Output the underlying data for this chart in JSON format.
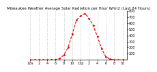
{
  "title": "Milwaukee Weather Average Solar Radiation per Hour W/m2 (Last 24 Hours)",
  "hours": [
    0,
    1,
    2,
    3,
    4,
    5,
    6,
    7,
    8,
    9,
    10,
    11,
    12,
    13,
    14,
    15,
    16,
    17,
    18,
    19,
    20,
    21,
    22,
    23
  ],
  "values": [
    0,
    0,
    0,
    0,
    0,
    0,
    5,
    20,
    80,
    200,
    420,
    650,
    720,
    760,
    680,
    560,
    380,
    180,
    50,
    10,
    0,
    0,
    0,
    0
  ],
  "line_color": "#dd0000",
  "linestyle": "--",
  "marker": ".",
  "markersize": 1.8,
  "linewidth": 0.8,
  "grid_color": "#aaaaaa",
  "grid_linestyle": ":",
  "grid_linewidth": 0.5,
  "background_color": "#ffffff",
  "ylim": [
    0,
    800
  ],
  "ytick_values": [
    100,
    200,
    300,
    400,
    500,
    600,
    700,
    800
  ],
  "ytick_fontsize": 3.5,
  "xtick_fontsize": 3.5,
  "title_fontsize": 4.0,
  "xlim": [
    0,
    23
  ],
  "xtick_positions": [
    0,
    2,
    4,
    6,
    8,
    10,
    12,
    14,
    16,
    18,
    20,
    22
  ],
  "xtick_labels": [
    "12a",
    "2",
    "4",
    "6",
    "8",
    "10",
    "12p",
    "2",
    "4",
    "6",
    "8",
    "10"
  ]
}
